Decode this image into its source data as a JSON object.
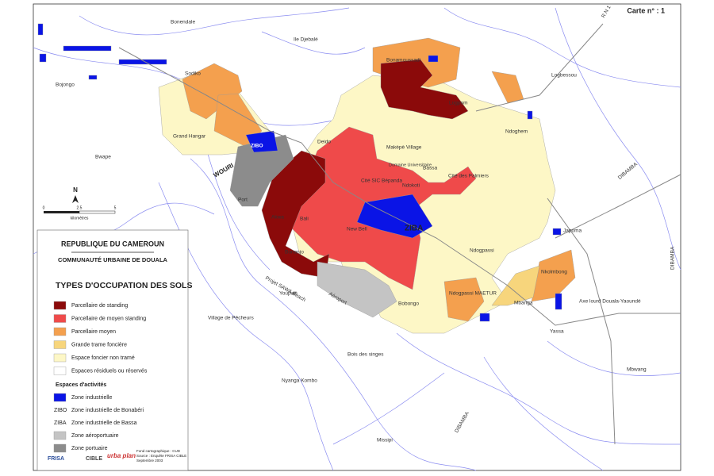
{
  "map_number": "Carte n° : 1",
  "places": [
    "R.N 1",
    "Bonendale",
    "Ile Djebalé",
    "Bonamoussadi",
    "Logbessou",
    "Bojongo",
    "Sodiko",
    "Grand Hangar",
    "Bwape",
    "ZIBO",
    "Deido",
    "Makèpè Village",
    "Domaine Universitaire",
    "Bassa",
    "Cité des Palmiers",
    "Ndoghem",
    "Logpom",
    "Cité SIC Bépanda",
    "Ndokoti",
    "ZIBA",
    "New Bell",
    "Akwa",
    "Bali",
    "Bonanjo",
    "Port",
    "WOURI",
    "Projet SAWA Beach",
    "Aéroport",
    "Youpwè",
    "Village de Pêcheurs",
    "Bobongo",
    "Ndogpassi",
    "Ndogpassi MAETUR",
    "Nkolmbong",
    "Japoma",
    "Mbanga",
    "Yassa",
    "Axe lourd Douala-Yaoundé",
    "Mbwang",
    "Bois des singes",
    "Nyanga Kombo",
    "Missipi",
    "DIBAMBA"
  ],
  "north": "N",
  "scale": [
    "0",
    "2.5",
    "5",
    "kilomètres"
  ],
  "legend": {
    "country": "REPUBLIQUE DU CAMEROUN",
    "authority": "COMMUNAUTÉ URBAINE DE DOUALA",
    "title": "TYPES D'OCCUPATION DES SOLS",
    "items": [
      {
        "label": "Parcellaire de standing",
        "color": "#8b0a0a"
      },
      {
        "label": "Parcellaire de moyen standing",
        "color": "#ef4a4a"
      },
      {
        "label": "Parcellaire moyen",
        "color": "#f4a04e"
      },
      {
        "label": "Grande trame foncière",
        "color": "#f7d57c"
      },
      {
        "label": "Espace foncier non tramé",
        "color": "#fdf7c6"
      },
      {
        "label": "Espaces résiduels ou réservés",
        "color": "#ffffff"
      }
    ],
    "activities_title": "Espaces d'activités",
    "activities": [
      {
        "label": "Zone industrielle",
        "color": "#0a14e6"
      },
      {
        "code": "ZIBO",
        "label": "Zone industrielle de Bonabéri"
      },
      {
        "code": "ZIBA",
        "label": "Zone industrielle de Bassa"
      },
      {
        "label": "Zone aéroportuaire",
        "color": "#c4c4c4"
      },
      {
        "label": "Zone portuaire",
        "color": "#8c8c8c"
      }
    ]
  },
  "credits": {
    "logos": [
      "FRISA",
      "CIBLE",
      "urba plan"
    ],
    "lines": [
      "Fond cartographique : CUD",
      "Source : Enquête FRISA CIBLE",
      "Septembre 2003"
    ]
  }
}
